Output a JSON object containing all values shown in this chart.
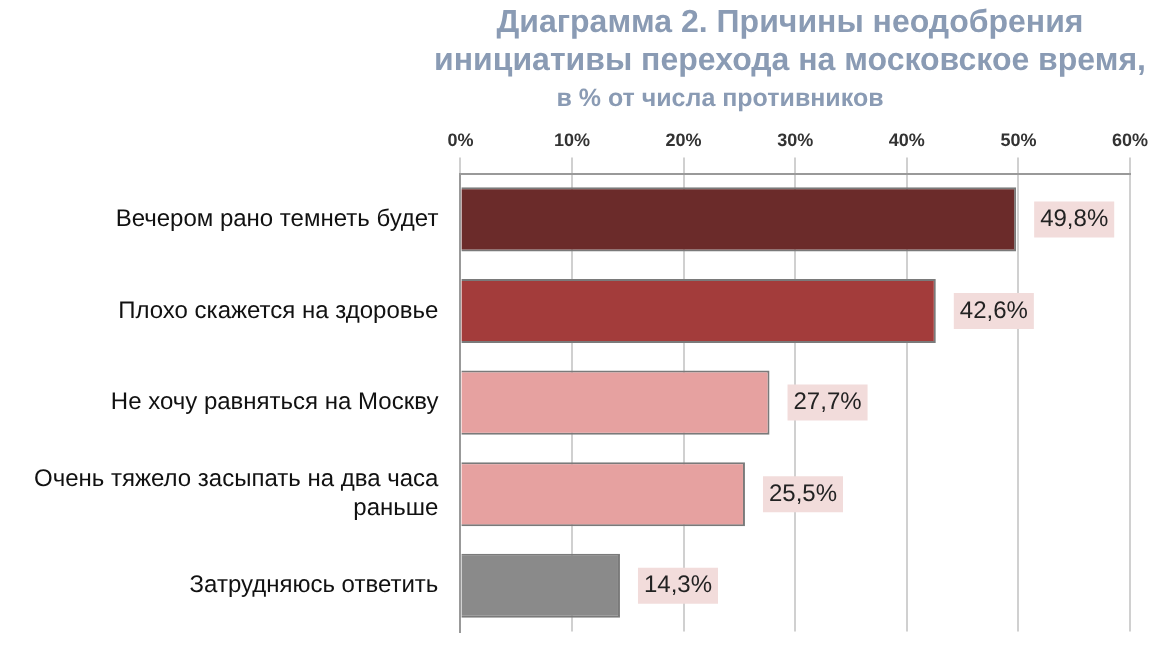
{
  "chart_data": {
    "type": "bar",
    "orientation": "horizontal",
    "title": "Диаграмма 2. Причины неодобрения инициативы перехода на московское время,",
    "subtitle": "в % от числа противников",
    "categories": [
      "Вечером рано темнеть будет",
      "Плохо скажется на здоровье",
      "Не хочу равняться на Москву",
      "Очень тяжело засыпать на два часа раньше",
      "Затрудняюсь ответить"
    ],
    "values": [
      49.8,
      42.6,
      27.7,
      25.5,
      14.3
    ],
    "colors": [
      "#6b2b2a",
      "#a33c3b",
      "#e6a1a0",
      "#e6a1a0",
      "#8a8a8a"
    ],
    "value_labels": [
      "49,8%",
      "42,6%",
      "27,7%",
      "25,5%",
      "14,3%"
    ],
    "xlim": [
      0,
      60
    ],
    "xticks": [
      {
        "value": 0,
        "label": "0%"
      },
      {
        "value": 10,
        "label": "10%"
      },
      {
        "value": 20,
        "label": "20%"
      },
      {
        "value": 30,
        "label": "30%"
      },
      {
        "value": 40,
        "label": "40%"
      },
      {
        "value": 50,
        "label": "50%"
      },
      {
        "value": 60,
        "label": "60%"
      }
    ],
    "grid": "x",
    "legend": false
  }
}
